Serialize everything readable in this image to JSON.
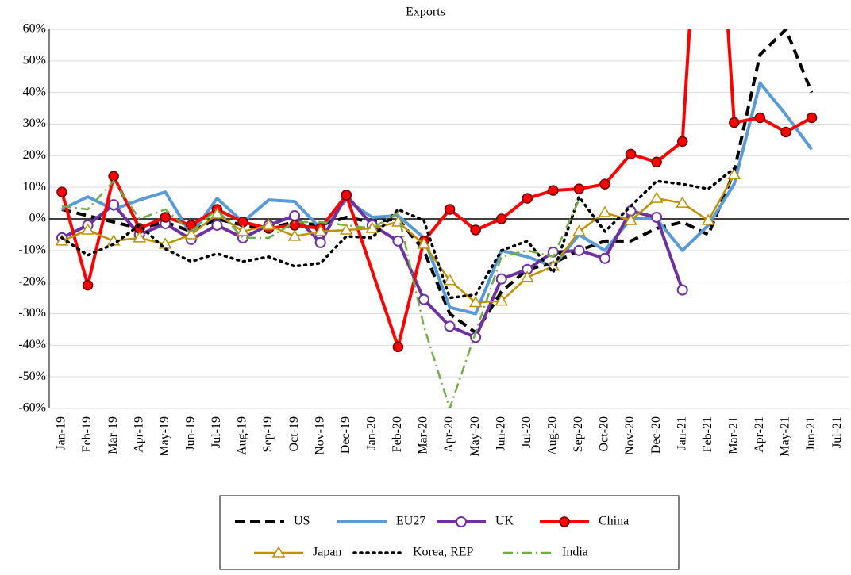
{
  "chart_data": {
    "type": "line",
    "title": "Exports",
    "categories": [
      "Jan-19",
      "Feb-19",
      "Mar-19",
      "Apr-19",
      "May-19",
      "Jun-19",
      "Jul-19",
      "Aug-19",
      "Sep-19",
      "Oct-19",
      "Nov-19",
      "Dec-19",
      "Jan-20",
      "Feb-20",
      "Mar-20",
      "Apr-20",
      "May-20",
      "Jun-20",
      "Jul-20",
      "Aug-20",
      "Sep-20",
      "Oct-20",
      "Nov-20",
      "Dec-20",
      "Jan-21",
      "Feb-21",
      "Mar-21",
      "Apr-21",
      "May-21",
      "Jun-21",
      "Jul-21"
    ],
    "ylim": [
      -60,
      60
    ],
    "yticks": [
      {
        "value": -60,
        "label": "-60%"
      },
      {
        "value": -50,
        "label": "-50%"
      },
      {
        "value": -40,
        "label": "-40%"
      },
      {
        "value": -30,
        "label": "-30%"
      },
      {
        "value": -20,
        "label": "-20%"
      },
      {
        "value": -10,
        "label": "-10%"
      },
      {
        "value": 0,
        "label": "0%"
      },
      {
        "value": 10,
        "label": "10%"
      },
      {
        "value": 20,
        "label": "20%"
      },
      {
        "value": 30,
        "label": "30%"
      },
      {
        "value": 40,
        "label": "40%"
      },
      {
        "value": 50,
        "label": "50%"
      },
      {
        "value": 60,
        "label": "60%"
      }
    ],
    "grid": true,
    "connect_gaps": true,
    "series": [
      {
        "name": "US",
        "color": "#000000",
        "line_style": "dashed",
        "width": 4,
        "marker": null,
        "values": [
          3,
          1,
          -1,
          -3,
          -1,
          -4,
          0,
          -2,
          -3,
          -1,
          -2,
          0.5,
          -1,
          0,
          -10,
          -30,
          -36,
          -23,
          -16,
          -14,
          -10,
          -7,
          -7,
          -3,
          -1,
          -5,
          15,
          52,
          60,
          40,
          null
        ]
      },
      {
        "name": "EU27",
        "color": "#5b9bd5",
        "line_style": "solid",
        "width": 4,
        "marker": null,
        "values": [
          3,
          7,
          3,
          6,
          8.5,
          -5,
          6.5,
          -1,
          6,
          5.5,
          -3,
          6,
          0.5,
          1,
          -6,
          -28,
          -30,
          -10,
          -12,
          -15,
          -5,
          -10,
          0,
          0,
          -10,
          -2,
          11,
          43,
          33,
          22,
          null
        ]
      },
      {
        "name": "UK",
        "color": "#7030a0",
        "line_style": "solid",
        "width": 4,
        "marker": "circle",
        "values": [
          -6,
          -2,
          4.5,
          -5,
          -1.5,
          -6.5,
          -2,
          -6,
          -2,
          1,
          -7.5,
          7.5,
          -2,
          -7,
          -25.5,
          -34,
          -37.5,
          -19,
          -16,
          -10.5,
          -10,
          -12.5,
          2.5,
          0.5,
          -22.5,
          null,
          null,
          null,
          null,
          null,
          null
        ]
      },
      {
        "name": "China",
        "color": "#ff0000",
        "line_style": "solid",
        "width": 4,
        "marker": "dot",
        "values": [
          8.5,
          -21,
          13.5,
          -3,
          0.5,
          -2,
          3,
          -1,
          -3,
          -2,
          -3,
          7.5,
          null,
          -40.5,
          -7,
          3,
          -3.5,
          0,
          6.5,
          9,
          9.5,
          11,
          20.5,
          18,
          24.5,
          155,
          30.5,
          32,
          27.5,
          32,
          null
        ]
      },
      {
        "name": "Japan",
        "color": "#bf9000",
        "line_style": "solid",
        "width": 2.5,
        "marker": "triangle",
        "values": [
          -7,
          -3.5,
          -7,
          -6,
          -8,
          -5,
          1.5,
          -4,
          -2,
          -5.5,
          -4,
          -3.5,
          -3,
          -1,
          -8,
          -19.5,
          -26.5,
          -26,
          -18.5,
          -15,
          -4,
          2,
          -0.5,
          6.5,
          5,
          -0.5,
          14,
          null,
          null,
          null,
          null
        ]
      },
      {
        "name": "Korea, REP",
        "color": "#000000",
        "line_style": "dotted",
        "width": 3.5,
        "marker": null,
        "values": [
          -6,
          -11.5,
          -8,
          -2,
          -9.5,
          -13.5,
          -11,
          -13.5,
          -12,
          -15,
          -14,
          -5.5,
          -6,
          3,
          -0.5,
          -25,
          -24,
          -10,
          -7,
          -17,
          7,
          -4,
          4,
          12,
          11,
          9.5,
          16,
          null,
          null,
          null,
          null
        ]
      },
      {
        "name": "India",
        "color": "#70ad47",
        "line_style": "dashdot",
        "width": 2.5,
        "marker": null,
        "values": [
          4,
          3,
          12,
          0,
          3,
          -4,
          3,
          -6,
          -6,
          -1,
          -1,
          -2,
          -3,
          2,
          -34,
          -60,
          -36,
          -12,
          -10,
          -12,
          6,
          null,
          null,
          null,
          null,
          null,
          null,
          null,
          null,
          null,
          null
        ]
      }
    ]
  }
}
